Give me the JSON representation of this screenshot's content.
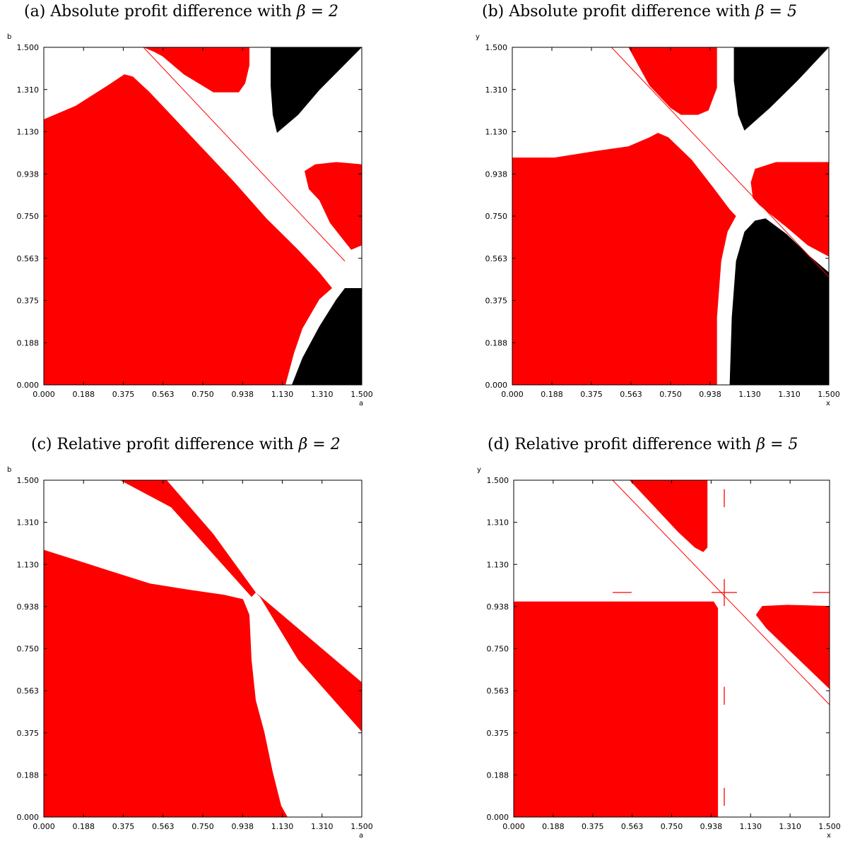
{
  "colors": {
    "red": "#ff0000",
    "black": "#000000",
    "white": "#ffffff"
  },
  "chart_data": [
    {
      "type": "heatmap",
      "title_prefix": "(a) Absolute profit difference with ",
      "title_math": "β = 2",
      "xlabel": "a",
      "ylabel": "b",
      "xlim": [
        0,
        1.5
      ],
      "ylim": [
        0,
        1.5
      ],
      "xticks": [
        "0.000",
        "0.188",
        "0.375",
        "0.563",
        "0.750",
        "0.938",
        "1.130",
        "1.310",
        "1.500"
      ],
      "yticks": [
        "0.000",
        "0.188",
        "0.375",
        "0.563",
        "0.750",
        "0.938",
        "1.130",
        "1.310",
        "1.500"
      ],
      "regions": [
        {
          "color": "red",
          "points": [
            [
              0,
              1.18
            ],
            [
              0.15,
              1.24
            ],
            [
              0.3,
              1.33
            ],
            [
              0.38,
              1.38
            ],
            [
              0.42,
              1.37
            ],
            [
              0.5,
              1.3
            ],
            [
              0.7,
              1.1
            ],
            [
              0.9,
              0.9
            ],
            [
              1.05,
              0.74
            ],
            [
              1.2,
              0.6
            ],
            [
              1.3,
              0.5
            ],
            [
              1.36,
              0.43
            ],
            [
              1.3,
              0.38
            ],
            [
              1.22,
              0.25
            ],
            [
              1.18,
              0.14
            ],
            [
              1.14,
              0
            ]
          ],
          "close_to": [
            [
              0,
              0
            ]
          ]
        },
        {
          "color": "red",
          "points": [
            [
              0.47,
              1.5
            ],
            [
              0.52,
              1.48
            ],
            [
              0.56,
              1.46
            ],
            [
              0.66,
              1.38
            ],
            [
              0.8,
              1.3
            ],
            [
              0.92,
              1.3
            ],
            [
              0.95,
              1.34
            ],
            [
              0.97,
              1.42
            ],
            [
              0.97,
              1.5
            ]
          ]
        },
        {
          "color": "black",
          "points": [
            [
              1.12,
              1.5
            ],
            [
              1.5,
              1.5
            ],
            [
              1.3,
              1.31
            ],
            [
              1.2,
              1.2
            ],
            [
              1.1,
              1.12
            ],
            [
              1.08,
              1.2
            ],
            [
              1.07,
              1.33
            ],
            [
              1.07,
              1.5
            ]
          ]
        },
        {
          "color": "red",
          "points": [
            [
              1.5,
              0.98
            ],
            [
              1.5,
              0.62
            ],
            [
              1.45,
              0.6
            ],
            [
              1.4,
              0.66
            ],
            [
              1.35,
              0.72
            ],
            [
              1.3,
              0.82
            ],
            [
              1.25,
              0.87
            ],
            [
              1.23,
              0.95
            ],
            [
              1.28,
              0.98
            ],
            [
              1.38,
              0.99
            ]
          ]
        },
        {
          "color": "black",
          "points": [
            [
              1.5,
              0
            ],
            [
              1.5,
              0.43
            ],
            [
              1.42,
              0.43
            ],
            [
              1.38,
              0.38
            ],
            [
              1.3,
              0.26
            ],
            [
              1.22,
              0.12
            ],
            [
              1.17,
              0
            ]
          ]
        }
      ],
      "lines": [
        {
          "color": "red",
          "from": [
            0.47,
            1.5
          ],
          "to": [
            1.42,
            0.55
          ],
          "width": 1
        }
      ]
    },
    {
      "type": "heatmap",
      "title_prefix": "(b) Absolute profit difference with ",
      "title_math": "β = 5",
      "xlabel": "x",
      "ylabel": "y",
      "xlim": [
        0,
        1.5
      ],
      "ylim": [
        0,
        1.5
      ],
      "xticks": [
        "0.000",
        "0.188",
        "0.375",
        "0.563",
        "0.750",
        "0.938",
        "1.130",
        "1.310",
        "1.500"
      ],
      "yticks": [
        "0.000",
        "0.188",
        "0.375",
        "0.563",
        "0.750",
        "0.938",
        "1.130",
        "1.310",
        "1.500"
      ],
      "regions": [
        {
          "color": "red",
          "points": [
            [
              0,
              1.01
            ],
            [
              0.2,
              1.01
            ],
            [
              0.4,
              1.04
            ],
            [
              0.55,
              1.06
            ],
            [
              0.65,
              1.1
            ],
            [
              0.69,
              1.12
            ],
            [
              0.74,
              1.1
            ],
            [
              0.85,
              1.0
            ],
            [
              0.95,
              0.88
            ],
            [
              1.03,
              0.78
            ],
            [
              1.06,
              0.75
            ],
            [
              1.02,
              0.68
            ],
            [
              0.99,
              0.55
            ],
            [
              0.97,
              0.3
            ],
            [
              0.97,
              0
            ]
          ],
          "close_to": [
            [
              0,
              0
            ]
          ]
        },
        {
          "color": "red",
          "points": [
            [
              0.55,
              1.5
            ],
            [
              0.97,
              1.5
            ],
            [
              0.97,
              1.32
            ],
            [
              0.95,
              1.27
            ],
            [
              0.93,
              1.22
            ],
            [
              0.88,
              1.2
            ],
            [
              0.8,
              1.2
            ],
            [
              0.75,
              1.23
            ],
            [
              0.65,
              1.33
            ]
          ]
        },
        {
          "color": "black",
          "points": [
            [
              1.05,
              1.5
            ],
            [
              1.5,
              1.5
            ],
            [
              1.35,
              1.35
            ],
            [
              1.22,
              1.23
            ],
            [
              1.1,
              1.13
            ],
            [
              1.07,
              1.2
            ],
            [
              1.05,
              1.35
            ]
          ]
        },
        {
          "color": "red",
          "points": [
            [
              1.5,
              0.99
            ],
            [
              1.5,
              0.57
            ],
            [
              1.4,
              0.62
            ],
            [
              1.3,
              0.7
            ],
            [
              1.22,
              0.76
            ],
            [
              1.17,
              0.8
            ],
            [
              1.14,
              0.83
            ],
            [
              1.13,
              0.9
            ],
            [
              1.15,
              0.96
            ],
            [
              1.25,
              0.99
            ]
          ]
        },
        {
          "color": "black",
          "points": [
            [
              1.5,
              0.5
            ],
            [
              1.5,
              0
            ],
            [
              1.03,
              0
            ],
            [
              1.04,
              0.3
            ],
            [
              1.06,
              0.55
            ],
            [
              1.1,
              0.68
            ],
            [
              1.15,
              0.73
            ],
            [
              1.2,
              0.74
            ],
            [
              1.3,
              0.67
            ],
            [
              1.4,
              0.58
            ]
          ]
        }
      ],
      "lines": [
        {
          "color": "red",
          "from": [
            0.47,
            1.5
          ],
          "to": [
            1.5,
            0.48
          ],
          "width": 1
        }
      ]
    },
    {
      "type": "heatmap",
      "title_prefix": "(c) Relative profit difference with ",
      "title_math": "β = 2",
      "xlabel": "a",
      "ylabel": "b",
      "xlim": [
        0,
        1.5
      ],
      "ylim": [
        0,
        1.5
      ],
      "xticks": [
        "0.000",
        "0.188",
        "0.375",
        "0.563",
        "0.750",
        "0.938",
        "1.130",
        "1.310",
        "1.500"
      ],
      "yticks": [
        "0.000",
        "0.188",
        "0.375",
        "0.563",
        "0.750",
        "0.938",
        "1.130",
        "1.310",
        "1.500"
      ],
      "regions": [
        {
          "color": "red",
          "points": [
            [
              0,
              1.19
            ],
            [
              0.1,
              1.16
            ],
            [
              0.3,
              1.1
            ],
            [
              0.5,
              1.04
            ],
            [
              0.7,
              1.01
            ],
            [
              0.85,
              0.99
            ],
            [
              0.94,
              0.97
            ],
            [
              0.97,
              0.9
            ],
            [
              0.98,
              0.7
            ],
            [
              1.0,
              0.52
            ],
            [
              1.04,
              0.38
            ],
            [
              1.08,
              0.2
            ],
            [
              1.12,
              0.05
            ],
            [
              1.15,
              0
            ]
          ],
          "close_to": [
            [
              0,
              0
            ]
          ]
        },
        {
          "color": "red",
          "points": [
            [
              0.36,
              1.5
            ],
            [
              0.58,
              1.5
            ],
            [
              0.8,
              1.26
            ],
            [
              1.0,
              1.0
            ],
            [
              0.98,
              0.98
            ],
            [
              0.6,
              1.38
            ]
          ]
        },
        {
          "color": "red",
          "points": [
            [
              1.0,
              1.0
            ],
            [
              1.5,
              0.6
            ],
            [
              1.5,
              0.38
            ],
            [
              1.2,
              0.7
            ],
            [
              1.02,
              0.98
            ]
          ]
        }
      ],
      "lines": []
    },
    {
      "type": "heatmap",
      "title_prefix": "(d) Relative profit difference with ",
      "title_math": "β = 5",
      "xlabel": "x",
      "ylabel": "y",
      "xlim": [
        0,
        1.5
      ],
      "ylim": [
        0,
        1.5
      ],
      "xticks": [
        "0.000",
        "0.188",
        "0.375",
        "0.563",
        "0.750",
        "0.938",
        "1.130",
        "1.310",
        "1.500"
      ],
      "yticks": [
        "0.000",
        "0.188",
        "0.375",
        "0.563",
        "0.750",
        "0.938",
        "1.130",
        "1.310",
        "1.500"
      ],
      "regions": [
        {
          "color": "red",
          "points": [
            [
              0,
              0.96
            ],
            [
              0.95,
              0.96
            ],
            [
              0.97,
              0.93
            ],
            [
              0.97,
              0
            ]
          ],
          "close_to": [
            [
              0,
              0
            ]
          ]
        },
        {
          "color": "red",
          "points": [
            [
              0.55,
              1.5
            ],
            [
              0.92,
              1.5
            ],
            [
              0.92,
              1.2
            ],
            [
              0.9,
              1.18
            ],
            [
              0.86,
              1.2
            ],
            [
              0.78,
              1.27
            ],
            [
              0.66,
              1.39
            ]
          ]
        },
        {
          "color": "red",
          "points": [
            [
              1.5,
              0.94
            ],
            [
              1.5,
              0.57
            ],
            [
              1.4,
              0.66
            ],
            [
              1.3,
              0.75
            ],
            [
              1.2,
              0.84
            ],
            [
              1.15,
              0.9
            ],
            [
              1.18,
              0.94
            ],
            [
              1.3,
              0.945
            ]
          ]
        }
      ],
      "lines": [
        {
          "color": "red",
          "from": [
            0.47,
            1.5
          ],
          "to": [
            1.5,
            0.5
          ],
          "width": 1
        },
        {
          "color": "red",
          "from": [
            1.0,
            0.94
          ],
          "to": [
            1.0,
            1.06
          ],
          "width": 1.3
        },
        {
          "color": "red",
          "from": [
            0.94,
            1.0
          ],
          "to": [
            1.06,
            1.0
          ],
          "width": 1.3
        },
        {
          "color": "red",
          "from": [
            0.47,
            1.0
          ],
          "to": [
            0.56,
            1.0
          ],
          "width": 1.3
        },
        {
          "color": "red",
          "from": [
            1.42,
            1.0
          ],
          "to": [
            1.5,
            1.0
          ],
          "width": 1.3
        },
        {
          "color": "red",
          "from": [
            1.0,
            1.38
          ],
          "to": [
            1.0,
            1.46
          ],
          "width": 1.3
        },
        {
          "color": "red",
          "from": [
            1.0,
            0.5
          ],
          "to": [
            1.0,
            0.58
          ],
          "width": 1.3
        },
        {
          "color": "red",
          "from": [
            1.0,
            0.05
          ],
          "to": [
            1.0,
            0.13
          ],
          "width": 1.3
        }
      ]
    }
  ]
}
